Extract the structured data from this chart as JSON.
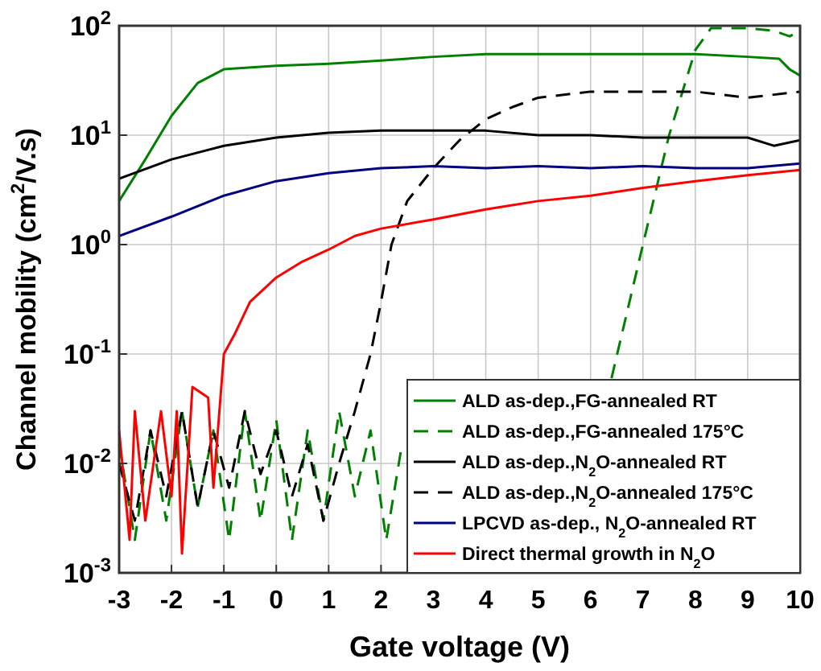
{
  "chart_data": {
    "type": "line",
    "xlabel": "Gate voltage (V)",
    "ylabel": "Channel mobility (cm$^{2}$/V.s)",
    "log": "y",
    "grid": true,
    "legend": "bottom right",
    "xlim": [
      -3,
      10
    ],
    "xticks": [
      -3,
      -2,
      -1,
      0,
      1,
      2,
      3,
      4,
      5,
      6,
      7,
      8,
      9,
      10
    ],
    "ylim": [
      0.001,
      100
    ],
    "yticks": [
      {
        "value": 0.001,
        "label": "10$^{-3}$"
      },
      {
        "value": 0.01,
        "label": "10$^{-2}$"
      },
      {
        "value": 0.1,
        "label": "10$^{-1}$"
      },
      {
        "value": 1,
        "label": "10$^{0}$"
      },
      {
        "value": 10,
        "label": "10$^{1}$"
      },
      {
        "value": 100,
        "label": "10$^{2}$"
      }
    ],
    "series": [
      {
        "name": "ALD as-dep.,FG-annealed RT",
        "color": "#008000",
        "line_style": "solid",
        "x": [
          -3,
          -2.5,
          -2,
          -1.5,
          -1,
          0,
          1,
          2,
          3,
          4,
          5,
          6,
          7,
          8,
          9,
          9.6,
          9.8,
          10
        ],
        "values": [
          2.5,
          6,
          15,
          30,
          40,
          43,
          45,
          48,
          52,
          55,
          55,
          55,
          55,
          55,
          52,
          50,
          40,
          35
        ]
      },
      {
        "name": "ALD as-dep.,FG-annealed 175°C",
        "color": "#008000",
        "line_style": "dashed",
        "x": [
          -3,
          -2.7,
          -2.4,
          -2.1,
          -1.8,
          -1.5,
          -1.2,
          -0.9,
          -0.6,
          -0.3,
          0,
          0.3,
          0.6,
          0.9,
          1.2,
          1.5,
          1.8,
          2.1,
          2.4,
          2.7,
          3,
          3.3,
          3.6,
          3.9,
          4.2,
          4.5,
          4.8,
          5.1,
          5.4,
          5.7,
          6,
          6.4,
          7,
          7.5,
          8,
          8.3,
          8.7,
          9,
          9.5,
          9.8,
          10
        ],
        "values": [
          0.015,
          0.002,
          0.02,
          0.003,
          0.03,
          0.004,
          0.02,
          0.002,
          0.03,
          0.003,
          0.025,
          0.002,
          0.02,
          0.003,
          0.03,
          0.005,
          0.02,
          0.002,
          0.015,
          null,
          null,
          null,
          null,
          null,
          null,
          null,
          null,
          null,
          null,
          null,
          null,
          0.06,
          1,
          10,
          60,
          95,
          95,
          95,
          90,
          80,
          90
        ]
      },
      {
        "name": "ALD as-dep.,N$_{2}$O-annealed RT",
        "color": "#000000",
        "line_style": "solid",
        "x": [
          -3,
          -2,
          -1,
          0,
          1,
          2,
          3,
          4,
          5,
          6,
          7,
          8,
          9,
          9.5,
          10
        ],
        "values": [
          4,
          6,
          8,
          9.5,
          10.5,
          11,
          11,
          11,
          10,
          10,
          9.5,
          9.5,
          9.5,
          8,
          9
        ]
      },
      {
        "name": "ALD as-dep.,N$_{2}$O-annealed 175°C",
        "color": "#000000",
        "line_style": "dashed",
        "x": [
          -3,
          -2.7,
          -2.4,
          -2.1,
          -1.8,
          -1.5,
          -1.2,
          -0.9,
          -0.6,
          -0.3,
          0,
          0.3,
          0.6,
          0.9,
          1.2,
          1.5,
          1.8,
          2,
          2.2,
          2.5,
          3,
          3.5,
          4,
          4.5,
          5,
          6,
          7,
          8,
          9,
          10
        ],
        "values": [
          0.01,
          0.003,
          0.02,
          0.005,
          0.03,
          0.004,
          0.02,
          0.006,
          0.03,
          0.008,
          0.02,
          0.005,
          0.015,
          0.003,
          0.01,
          0.03,
          0.1,
          0.3,
          1,
          2.5,
          5,
          9,
          14,
          18,
          22,
          25,
          25,
          25,
          22,
          25
        ]
      },
      {
        "name": "LPCVD as-dep., N$_{2}$O-annealed RT",
        "color": "#000080",
        "line_style": "solid",
        "x": [
          -3,
          -2,
          -1,
          0,
          1,
          2,
          3,
          4,
          5,
          6,
          7,
          8,
          9,
          10
        ],
        "values": [
          1.2,
          1.8,
          2.8,
          3.8,
          4.5,
          5,
          5.2,
          5,
          5.2,
          5,
          5.2,
          5,
          5,
          5.5
        ]
      },
      {
        "name": "Direct thermal growth in N$_{2}$O",
        "color": "#ff0000",
        "line_style": "solid",
        "x": [
          -3,
          -2.8,
          -2.7,
          -2.5,
          -2.2,
          -2,
          -1.9,
          -1.8,
          -1.6,
          -1.3,
          -1.2,
          -1,
          -0.8,
          -0.5,
          0,
          0.5,
          1,
          1.5,
          2,
          3,
          4,
          5,
          6,
          7,
          8,
          9,
          10
        ],
        "values": [
          0.02,
          0.002,
          0.03,
          0.003,
          0.03,
          0.005,
          0.03,
          0.0015,
          0.05,
          0.04,
          0.006,
          0.1,
          0.15,
          0.3,
          0.5,
          0.7,
          0.9,
          1.2,
          1.4,
          1.7,
          2.1,
          2.5,
          2.8,
          3.3,
          3.8,
          4.3,
          4.8
        ]
      }
    ]
  }
}
